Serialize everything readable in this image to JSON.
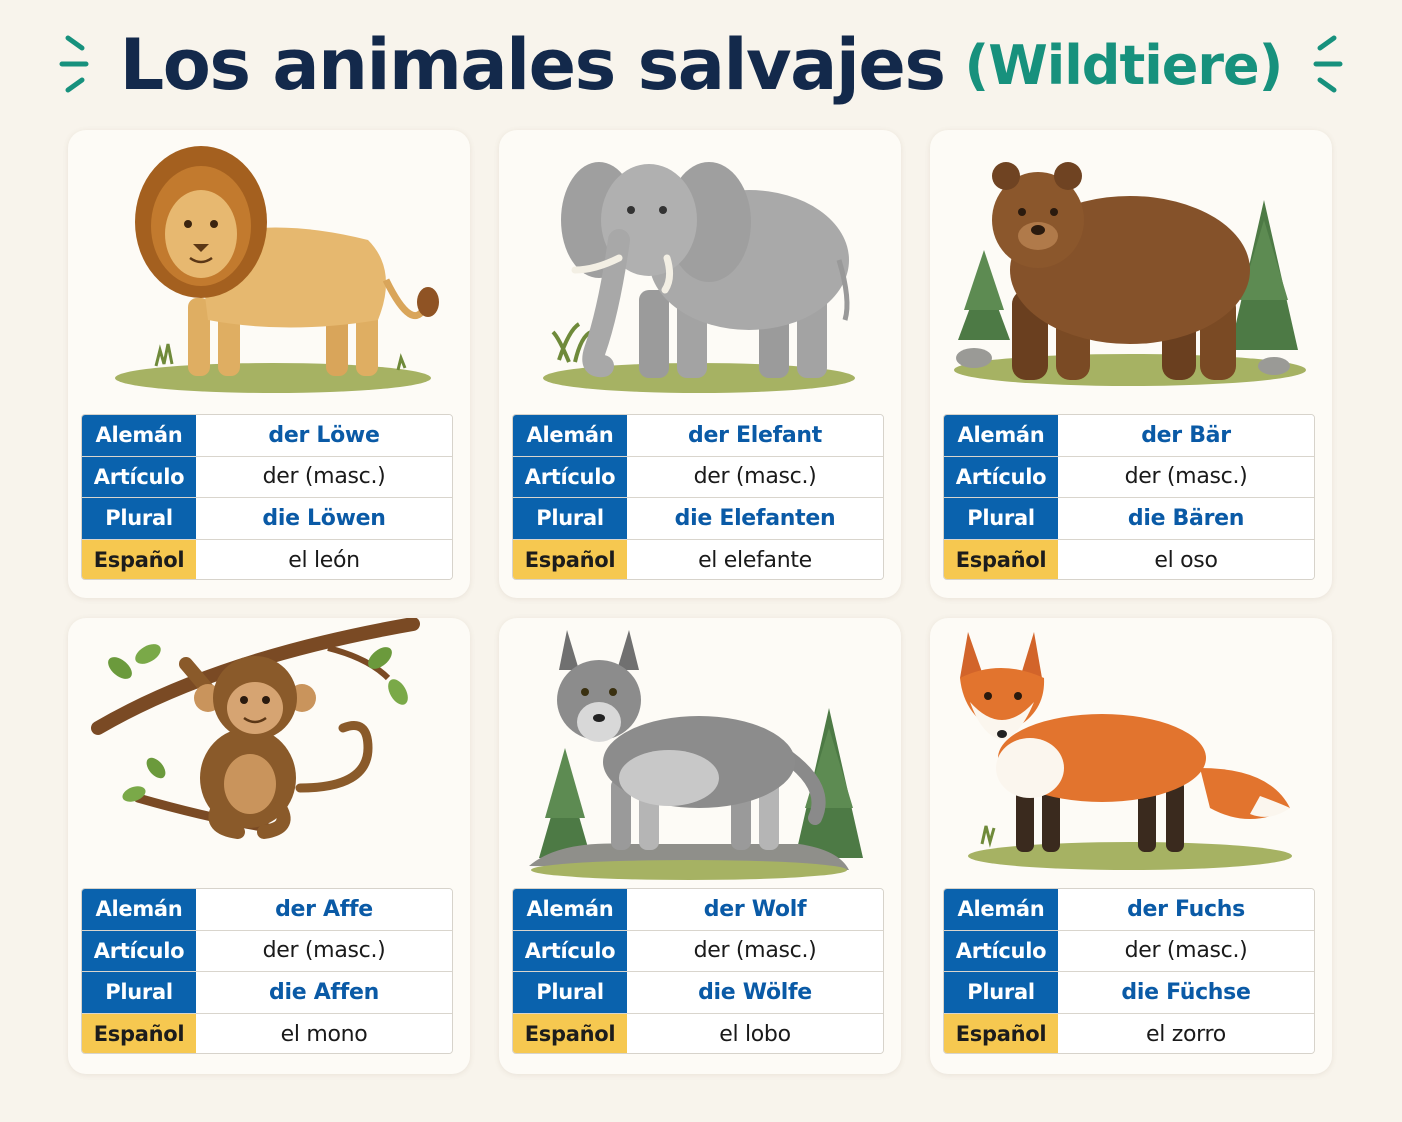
{
  "title": {
    "main": "Los animales salvajes",
    "sub": "(Wildtiere)"
  },
  "labels": {
    "aleman": "Alemán",
    "articulo": "Artículo",
    "plural": "Plural",
    "espanol": "Español"
  },
  "colors": {
    "title": "#13294b",
    "subtitle": "#17917d",
    "label_blue": "#0a62ad",
    "label_yellow": "#f6c850",
    "value_blue": "#0a5aa6"
  },
  "cards": [
    {
      "animal_icon": "lion-icon",
      "aleman": "der Löwe",
      "articulo": "der (masc.)",
      "plural": "die Löwen",
      "espanol": "el león"
    },
    {
      "animal_icon": "elephant-icon",
      "aleman": "der Elefant",
      "articulo": "der (masc.)",
      "plural": "die Elefanten",
      "espanol": "el elefante"
    },
    {
      "animal_icon": "bear-icon",
      "aleman": "der Bär",
      "articulo": "der (masc.)",
      "plural": "die Bären",
      "espanol": "el oso"
    },
    {
      "animal_icon": "monkey-icon",
      "aleman": "der Affe",
      "articulo": "der (masc.)",
      "plural": "die Affen",
      "espanol": "el mono"
    },
    {
      "animal_icon": "wolf-icon",
      "aleman": "der Wolf",
      "articulo": "der (masc.)",
      "plural": "die Wölfe",
      "espanol": "el lobo"
    },
    {
      "animal_icon": "fox-icon",
      "aleman": "der Fuchs",
      "articulo": "der (masc.)",
      "plural": "die Füchse",
      "espanol": "el zorro"
    }
  ]
}
